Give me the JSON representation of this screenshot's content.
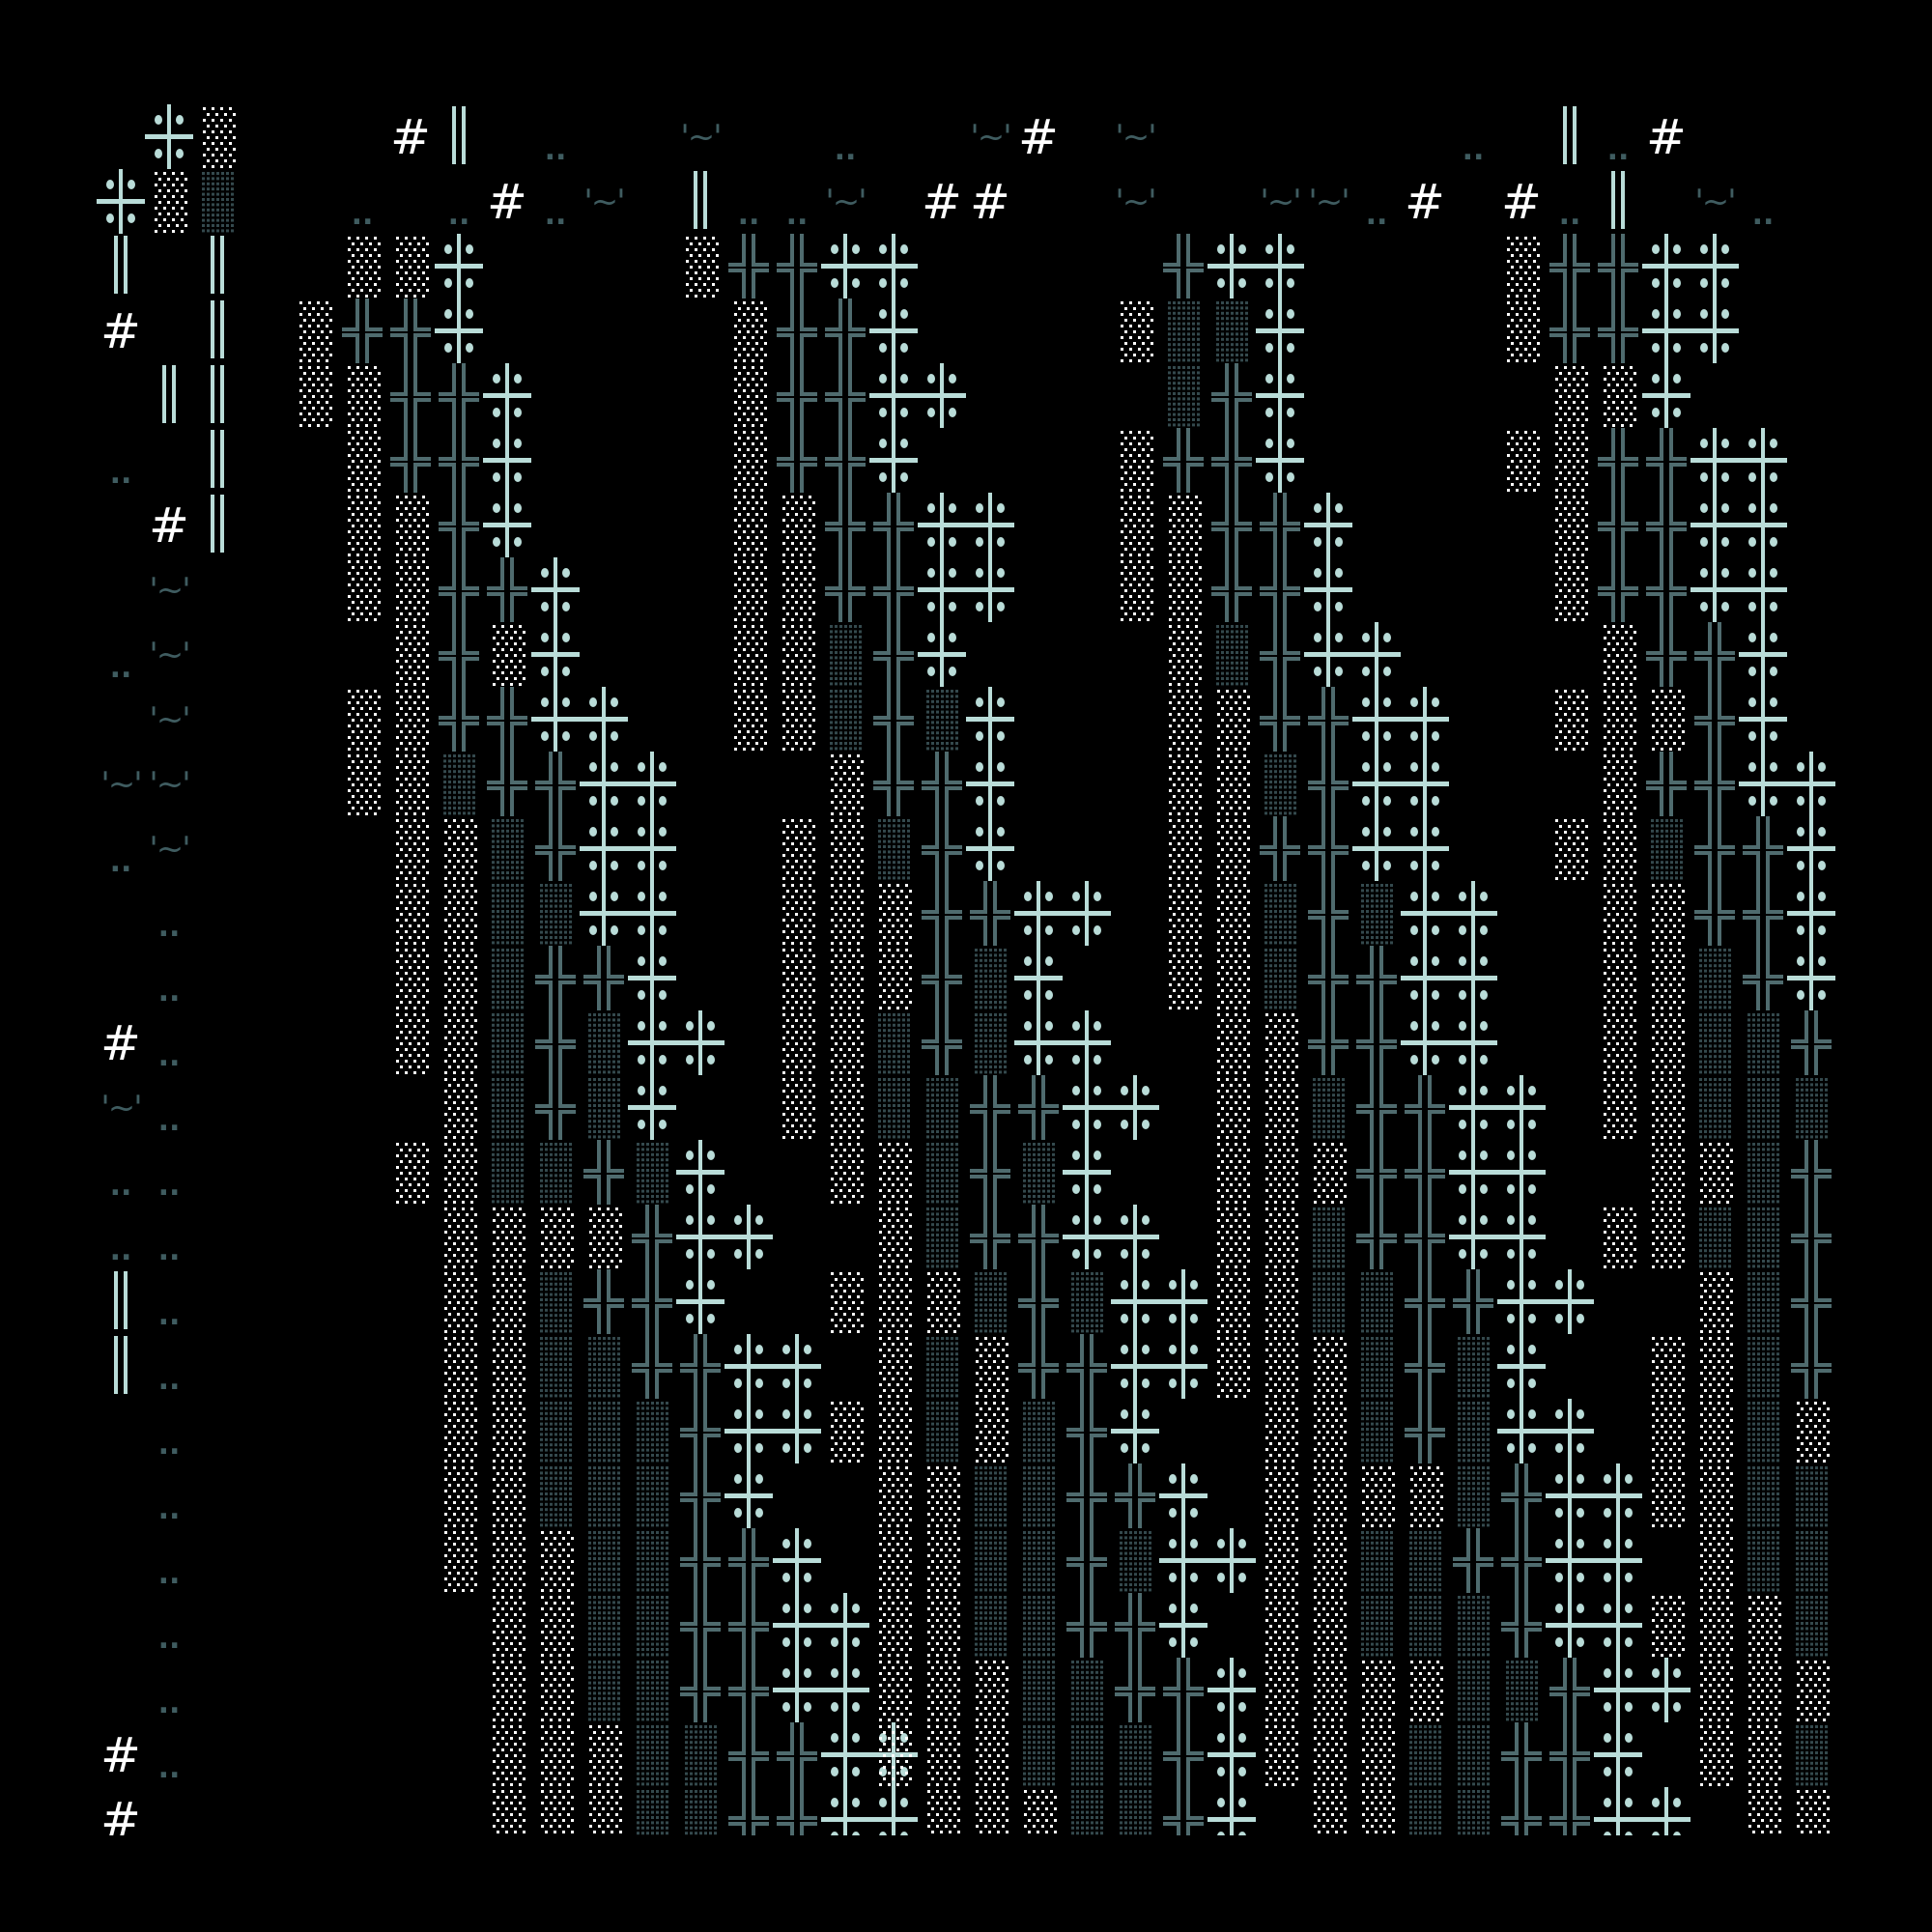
{
  "artwork": {
    "background": "#000000",
    "palette": {
      "light_cross": "#b9dcd8",
      "dark_cross": "#4f6b6e",
      "light_dots": "#ffffff",
      "dark_dots": "#34494d",
      "double_bar": "#b9dcd8",
      "hash": "#ffffff",
      "faint_text": "#3f5c60"
    },
    "glyphs": {
      "hash": "#",
      "tilde": "'~'",
      "dots": ".."
    },
    "glyph_types": [
      "light-cross-icon",
      "dark-cross-icon",
      "light-dots-pattern",
      "dark-dots-pattern",
      "double-bar-icon",
      "hash",
      "tilde",
      "dots"
    ]
  }
}
